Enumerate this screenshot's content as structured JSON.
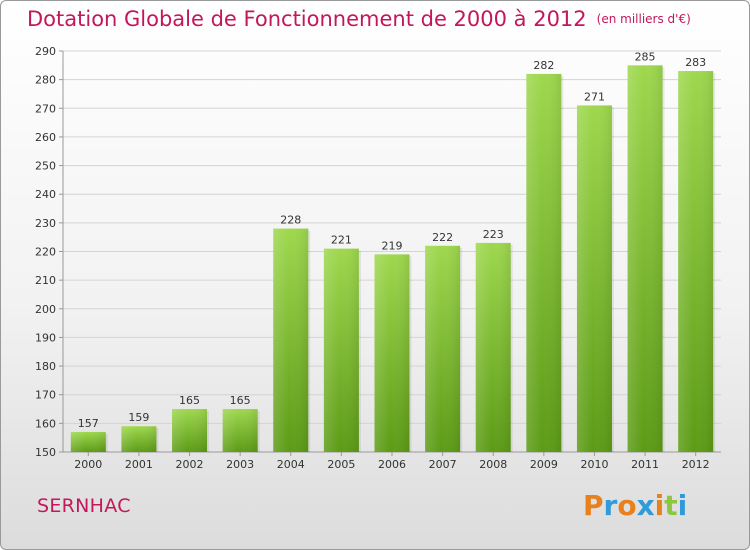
{
  "title": "Dotation Globale de Fonctionnement de 2000 à 2012",
  "unit": "(en milliers d'€)",
  "place": "SERNHAC",
  "brand": [
    "P",
    "r",
    "o",
    "x",
    "i",
    "t",
    "i"
  ],
  "brand_colors": [
    "#e8801c",
    "#2f9bd8",
    "#e8801c",
    "#2f9bd8",
    "#e8801c",
    "#8dc63f",
    "#2f9bd8"
  ],
  "colors": {
    "bar_top": "#9ed84e",
    "bar_bottom": "#5c9b16",
    "title": "#c2185b",
    "grid": "#d4d4d4"
  },
  "chart_data": {
    "type": "bar",
    "categories": [
      "2000",
      "2001",
      "2002",
      "2003",
      "2004",
      "2005",
      "2006",
      "2007",
      "2008",
      "2009",
      "2010",
      "2011",
      "2012"
    ],
    "values": [
      157,
      159,
      165,
      165,
      228,
      221,
      219,
      222,
      223,
      282,
      271,
      285,
      283
    ],
    "ylim": [
      150,
      290
    ],
    "yticks": [
      150,
      160,
      170,
      180,
      190,
      200,
      210,
      220,
      230,
      240,
      250,
      260,
      270,
      280,
      290
    ],
    "grid": true
  }
}
